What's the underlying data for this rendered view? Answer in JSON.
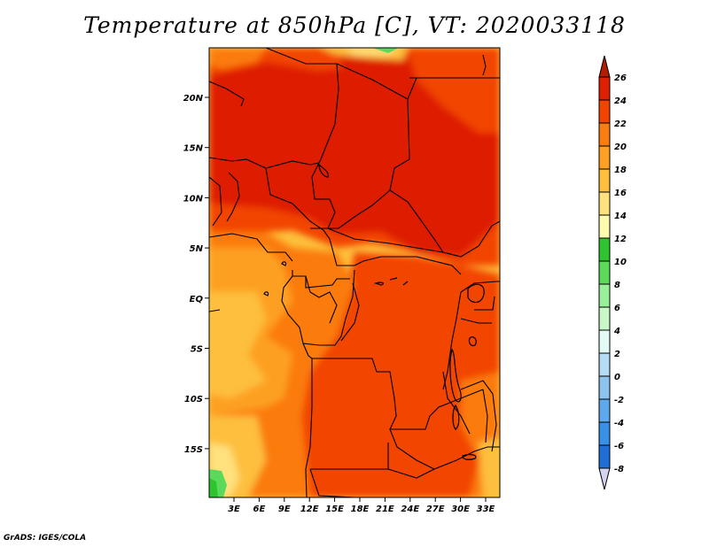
{
  "title": "Temperature at 850hPa [C], VT: 2020033118",
  "footer": "GrADS: IGES/COLA",
  "map": {
    "lon_labels": [
      "3E",
      "6E",
      "9E",
      "12E",
      "15E",
      "18E",
      "21E",
      "24E",
      "27E",
      "30E",
      "33E"
    ],
    "lat_labels": [
      "20N",
      "15N",
      "10N",
      "5N",
      "EQ",
      "5S",
      "10S",
      "15S"
    ]
  },
  "colorbar": {
    "levels": [
      {
        "label": "26",
        "color": "#b41e00"
      },
      {
        "label": "24",
        "color": "#de1f00"
      },
      {
        "label": "22",
        "color": "#f24400"
      },
      {
        "label": "20",
        "color": "#fb7c10"
      },
      {
        "label": "18",
        "color": "#fda023"
      },
      {
        "label": "16",
        "color": "#fdbf3c"
      },
      {
        "label": "14",
        "color": "#ffe17e"
      },
      {
        "label": "12",
        "color": "#fffbae"
      },
      {
        "label": "10",
        "color": "#2fc42f"
      },
      {
        "label": "8",
        "color": "#5ad95a"
      },
      {
        "label": "6",
        "color": "#9af09a"
      },
      {
        "label": "4",
        "color": "#c8f7c8"
      },
      {
        "label": "2",
        "color": "#e3fbf5"
      },
      {
        "label": "0",
        "color": "#b5dbf5"
      },
      {
        "label": "-2",
        "color": "#8dc3ef"
      },
      {
        "label": "-4",
        "color": "#5ea9ec"
      },
      {
        "label": "-6",
        "color": "#3a8fe6"
      },
      {
        "label": "-8",
        "color": "#1f6ed8"
      }
    ],
    "extra_colors": [
      "#1556c4",
      "#0c3aa6",
      "#000c6e"
    ],
    "bottom_tip_color": "#d4d4f0",
    "top_tip_color": "#b41e00"
  }
}
